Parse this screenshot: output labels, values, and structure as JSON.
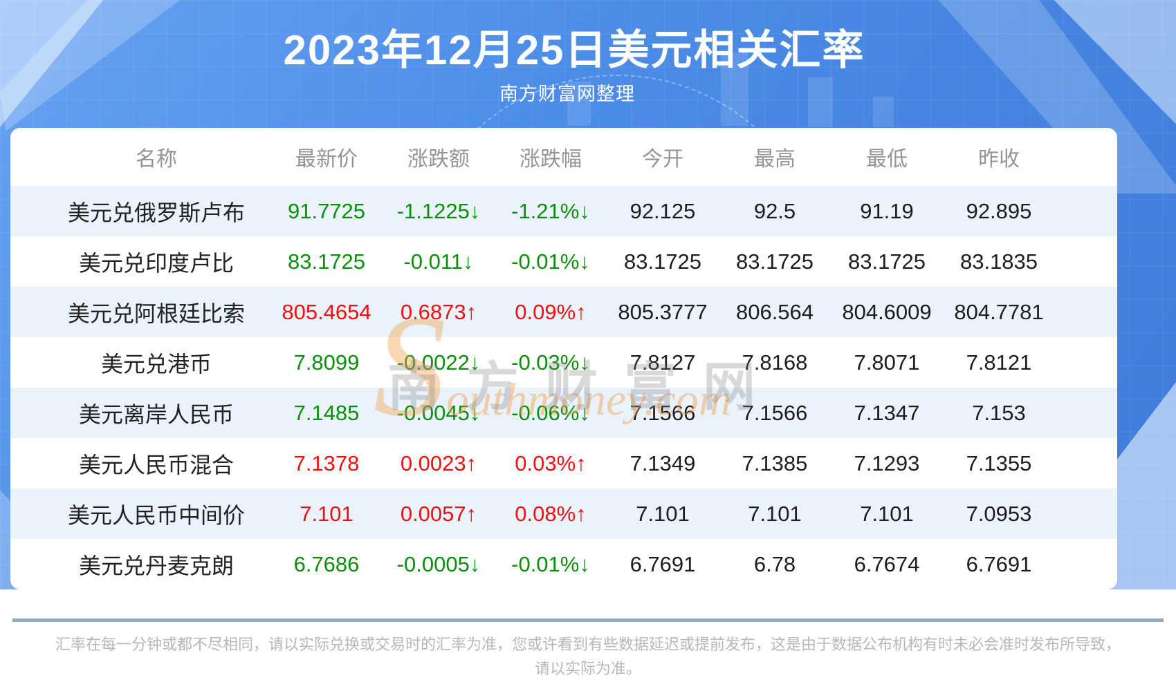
{
  "title": "2023年12月25日美元相关汇率",
  "subtitle": "南方财富网整理",
  "chart_data": {
    "type": "table",
    "title": "2023年12月25日美元相关汇率",
    "source_note": "南方财富网整理",
    "columns": [
      "名称",
      "最新价",
      "涨跌额",
      "涨跌幅",
      "今开",
      "最高",
      "最低",
      "昨收"
    ],
    "colored_value_columns": [
      "最新价",
      "涨跌额",
      "涨跌幅"
    ],
    "rows": [
      {
        "name": "美元兑俄罗斯卢布",
        "direction": "down",
        "values": [
          "91.7725",
          "-1.1225↓",
          "-1.21%↓",
          "92.125",
          "92.5",
          "91.19",
          "92.895"
        ]
      },
      {
        "name": "美元兑印度卢比",
        "direction": "down",
        "values": [
          "83.1725",
          "-0.011↓",
          "-0.01%↓",
          "83.1725",
          "83.1725",
          "83.1725",
          "83.1835"
        ]
      },
      {
        "name": "美元兑阿根廷比索",
        "direction": "up",
        "values": [
          "805.4654",
          "0.6873↑",
          "0.09%↑",
          "805.3777",
          "806.564",
          "804.6009",
          "804.7781"
        ]
      },
      {
        "name": "美元兑港币",
        "direction": "down",
        "values": [
          "7.8099",
          "-0.0022↓",
          "-0.03%↓",
          "7.8127",
          "7.8168",
          "7.8071",
          "7.8121"
        ]
      },
      {
        "name": "美元离岸人民币",
        "direction": "down",
        "values": [
          "7.1485",
          "-0.0045↓",
          "-0.06%↓",
          "7.1566",
          "7.1566",
          "7.1347",
          "7.153"
        ]
      },
      {
        "name": "美元人民币混合",
        "direction": "up",
        "values": [
          "7.1378",
          "0.0023↑",
          "0.03%↑",
          "7.1349",
          "7.1385",
          "7.1293",
          "7.1355"
        ]
      },
      {
        "name": "美元人民币中间价",
        "direction": "up",
        "values": [
          "7.101",
          "0.0057↑",
          "0.08%↑",
          "7.101",
          "7.101",
          "7.101",
          "7.0953"
        ]
      },
      {
        "name": "美元兑丹麦克朗",
        "direction": "down",
        "values": [
          "6.7686",
          "-0.0005↓",
          "-0.01%↓",
          "6.7691",
          "6.78",
          "6.7674",
          "6.7691"
        ]
      }
    ]
  },
  "watermark": {
    "cn": "南方财富网",
    "en": "Southmoney.com"
  },
  "footer": {
    "line1": "汇率在每一分钟或都不尽相同，请以实际兑换或交易时的汇率为准，您或许看到有些数据延迟或提前发布，这是由于数据公布机构有时未必会准时发布所导致，",
    "line2": "请以实际为准。"
  },
  "colors": {
    "up": "#f40d0d",
    "down": "#089008",
    "stripe": "#eaf3fc",
    "divider": "#8fa9c6",
    "banner_blue": "#4b8ce7"
  }
}
